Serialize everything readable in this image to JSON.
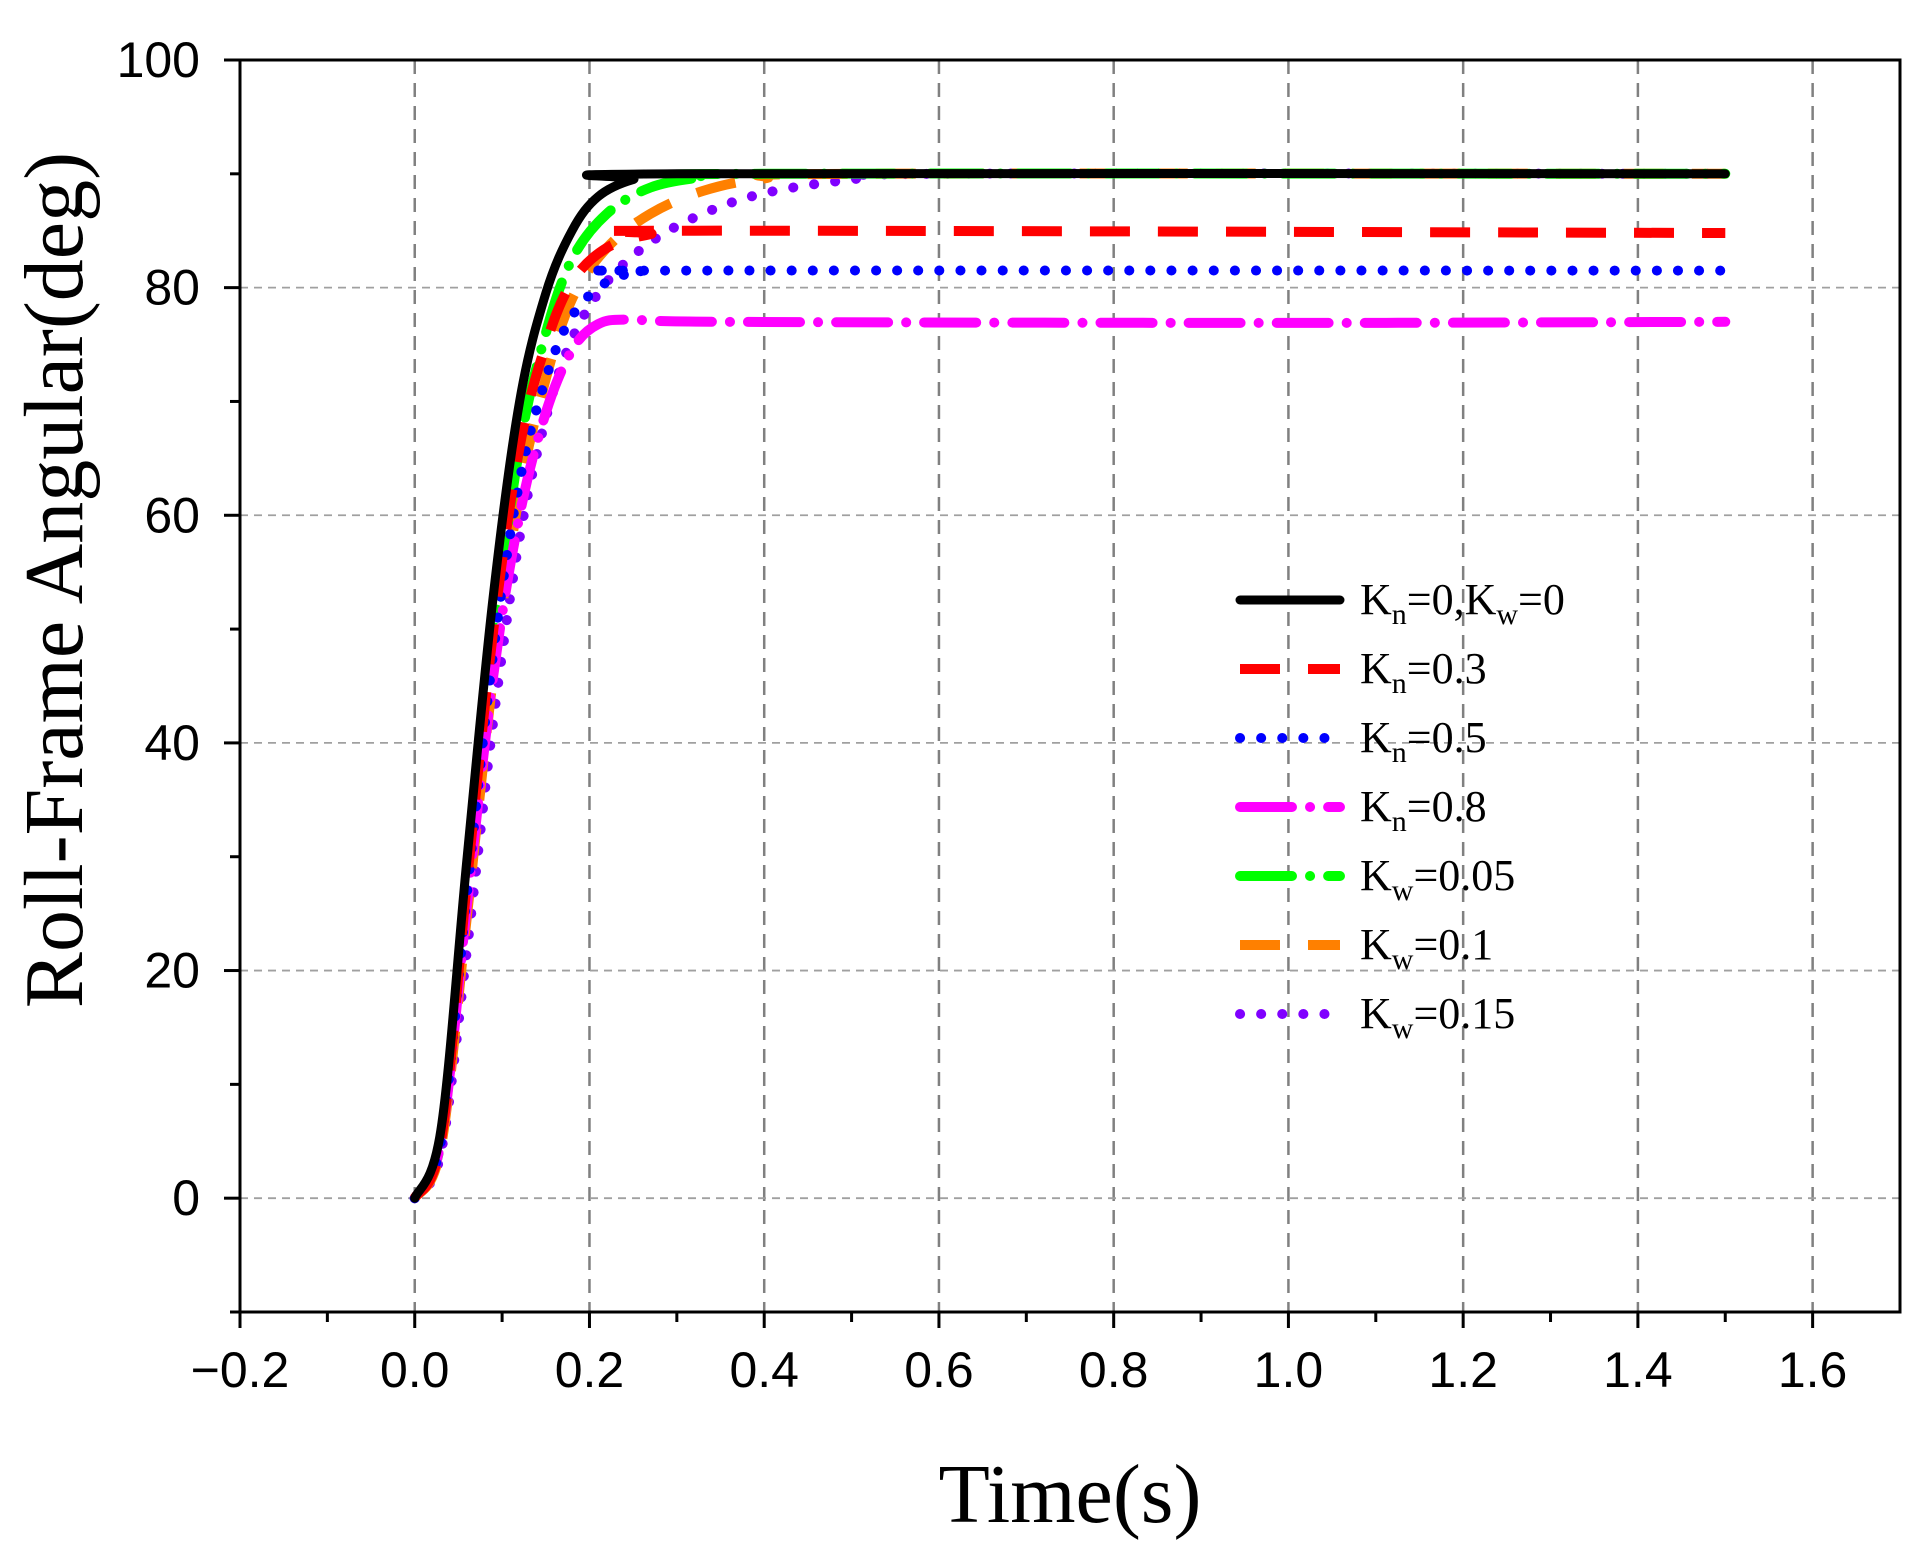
{
  "chart_data": {
    "type": "line",
    "xlabel": "Time(s)",
    "ylabel": "Roll-Frame Angular(deg)",
    "xlim": [
      -0.2,
      1.7
    ],
    "ylim": [
      -10,
      100
    ],
    "xticks": [
      -0.2,
      0.0,
      0.2,
      0.4,
      0.6,
      0.8,
      1.0,
      1.2,
      1.4,
      1.6
    ],
    "xtick_labels": [
      "−0.2",
      "0.0",
      "0.2",
      "0.4",
      "0.6",
      "0.8",
      "1.0",
      "1.2",
      "1.4",
      "1.6"
    ],
    "yticks": [
      0,
      20,
      40,
      60,
      80,
      100
    ],
    "ytick_labels": [
      "0",
      "20",
      "40",
      "60",
      "80",
      "100"
    ],
    "grid": true,
    "legend_position": "center-right",
    "series": [
      {
        "name": "Kn=0,Kw=0",
        "legend": {
          "parts": [
            [
              "K",
              ""
            ],
            [
              "n",
              "sub"
            ],
            [
              "=0,K",
              ""
            ],
            [
              "w",
              "sub"
            ],
            [
              "=0",
              ""
            ]
          ]
        },
        "color": "#000000",
        "style": "solid",
        "points": [
          [
            0,
            0
          ],
          [
            0.03,
            6
          ],
          [
            0.06,
            30
          ],
          [
            0.09,
            53
          ],
          [
            0.12,
            70
          ],
          [
            0.15,
            79.5
          ],
          [
            0.18,
            85
          ],
          [
            0.21,
            88
          ],
          [
            0.25,
            89.5
          ],
          [
            0.3,
            90
          ],
          [
            1.5,
            90
          ]
        ]
      },
      {
        "name": "Kn=0.3",
        "legend": {
          "parts": [
            [
              "K",
              ""
            ],
            [
              "n",
              "sub"
            ],
            [
              "=0.3",
              ""
            ]
          ]
        },
        "color": "#ff0000",
        "style": "dash",
        "points": [
          [
            0,
            0
          ],
          [
            0.03,
            5
          ],
          [
            0.06,
            28
          ],
          [
            0.09,
            50
          ],
          [
            0.12,
            66
          ],
          [
            0.15,
            75
          ],
          [
            0.18,
            80.5
          ],
          [
            0.22,
            83.5
          ],
          [
            0.27,
            84.7
          ],
          [
            0.32,
            85
          ],
          [
            1.5,
            84.8
          ]
        ]
      },
      {
        "name": "Kn=0.5",
        "legend": {
          "parts": [
            [
              "K",
              ""
            ],
            [
              "n",
              "sub"
            ],
            [
              "=0.5",
              ""
            ]
          ]
        },
        "color": "#0000ff",
        "style": "dot",
        "points": [
          [
            0,
            0
          ],
          [
            0.03,
            5
          ],
          [
            0.06,
            27
          ],
          [
            0.09,
            48
          ],
          [
            0.12,
            63
          ],
          [
            0.15,
            72
          ],
          [
            0.18,
            77.5
          ],
          [
            0.22,
            80.5
          ],
          [
            0.26,
            81.4
          ],
          [
            0.3,
            81.5
          ],
          [
            1.5,
            81.5
          ]
        ]
      },
      {
        "name": "Kn=0.8",
        "legend": {
          "parts": [
            [
              "K",
              ""
            ],
            [
              "n",
              "sub"
            ],
            [
              "=0.8",
              ""
            ]
          ]
        },
        "color": "#ff00ff",
        "style": "dashdot",
        "points": [
          [
            0,
            0
          ],
          [
            0.03,
            5
          ],
          [
            0.06,
            26
          ],
          [
            0.09,
            46
          ],
          [
            0.12,
            60
          ],
          [
            0.15,
            69
          ],
          [
            0.18,
            74.5
          ],
          [
            0.21,
            76.8
          ],
          [
            0.25,
            77.2
          ],
          [
            0.35,
            77
          ],
          [
            1.0,
            76.9
          ],
          [
            1.5,
            77
          ]
        ]
      },
      {
        "name": "Kw=0.05",
        "legend": {
          "parts": [
            [
              "K",
              ""
            ],
            [
              "w",
              "sub"
            ],
            [
              "=0.05",
              ""
            ]
          ]
        },
        "color": "#00ff00",
        "style": "dashdot",
        "points": [
          [
            0,
            0
          ],
          [
            0.03,
            5
          ],
          [
            0.06,
            27
          ],
          [
            0.09,
            49
          ],
          [
            0.12,
            66
          ],
          [
            0.15,
            76
          ],
          [
            0.18,
            82.5
          ],
          [
            0.22,
            86.5
          ],
          [
            0.27,
            88.8
          ],
          [
            0.33,
            89.7
          ],
          [
            0.4,
            90
          ],
          [
            1.5,
            90
          ]
        ]
      },
      {
        "name": "Kw=0.1",
        "legend": {
          "parts": [
            [
              "K",
              ""
            ],
            [
              "w",
              "sub"
            ],
            [
              "=0.1",
              ""
            ]
          ]
        },
        "color": "#ff8000",
        "style": "dash",
        "points": [
          [
            0,
            0
          ],
          [
            0.03,
            4.5
          ],
          [
            0.06,
            25
          ],
          [
            0.09,
            46
          ],
          [
            0.12,
            62
          ],
          [
            0.15,
            72
          ],
          [
            0.18,
            79
          ],
          [
            0.22,
            83.5
          ],
          [
            0.27,
            86.5
          ],
          [
            0.33,
            88.5
          ],
          [
            0.4,
            89.6
          ],
          [
            0.5,
            90
          ],
          [
            1.5,
            90
          ]
        ]
      },
      {
        "name": "Kw=0.15",
        "legend": {
          "parts": [
            [
              "K",
              ""
            ],
            [
              "w",
              "sub"
            ],
            [
              "=0.15",
              ""
            ]
          ]
        },
        "color": "#8000ff",
        "style": "dot",
        "points": [
          [
            0,
            0
          ],
          [
            0.03,
            4
          ],
          [
            0.06,
            22
          ],
          [
            0.09,
            42
          ],
          [
            0.12,
            58
          ],
          [
            0.15,
            68.5
          ],
          [
            0.18,
            75.5
          ],
          [
            0.22,
            80.5
          ],
          [
            0.27,
            84
          ],
          [
            0.33,
            86.5
          ],
          [
            0.4,
            88.3
          ],
          [
            0.5,
            89.5
          ],
          [
            0.6,
            90
          ],
          [
            1.5,
            90
          ]
        ]
      }
    ]
  }
}
